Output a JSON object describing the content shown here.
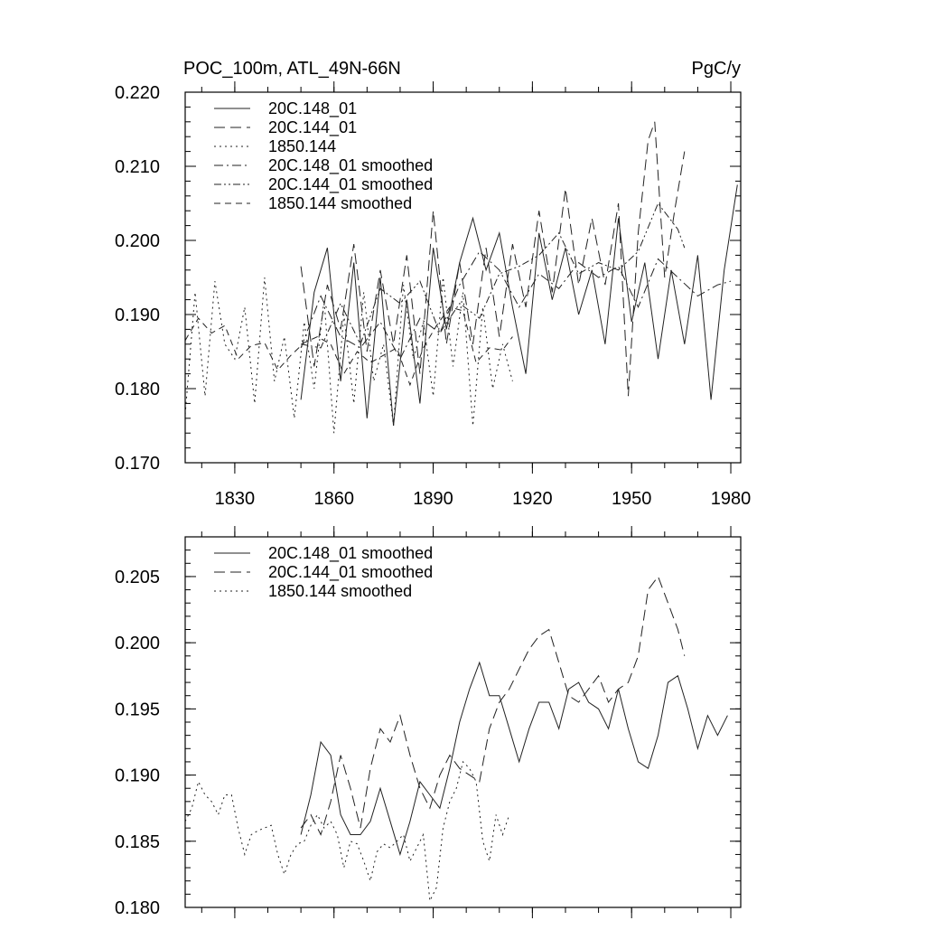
{
  "chart_data": [
    {
      "type": "line",
      "title_left": "POC_100m, ATL_49N-66N",
      "title_right": "PgC/y",
      "xlabel": "",
      "ylabel": "",
      "xlim": [
        1815,
        1983
      ],
      "ylim": [
        0.17,
        0.22
      ],
      "xticks": [
        1830,
        1860,
        1890,
        1920,
        1950,
        1980
      ],
      "xtick_labels": [
        "1830",
        "1860",
        "1890",
        "1920",
        "1950",
        "1980"
      ],
      "yticks": [
        0.17,
        0.18,
        0.19,
        0.2,
        0.21,
        0.22
      ],
      "ytick_labels": [
        "0.170",
        "0.180",
        "0.190",
        "0.200",
        "0.210",
        "0.220"
      ],
      "legend_position": "top-left",
      "series": [
        {
          "name": "20C.148_01",
          "style": "solid",
          "x": [
            1850,
            1854,
            1858,
            1862,
            1866,
            1870,
            1874,
            1878,
            1882,
            1886,
            1890,
            1894,
            1898,
            1902,
            1906,
            1910,
            1914,
            1918,
            1922,
            1926,
            1930,
            1934,
            1938,
            1942,
            1946,
            1950,
            1954,
            1958,
            1962,
            1966,
            1970,
            1974,
            1978,
            1982
          ],
          "y": [
            0.1785,
            0.193,
            0.199,
            0.181,
            0.197,
            0.176,
            0.195,
            0.175,
            0.192,
            0.178,
            0.199,
            0.188,
            0.197,
            0.203,
            0.196,
            0.201,
            0.191,
            0.182,
            0.201,
            0.192,
            0.199,
            0.19,
            0.196,
            0.186,
            0.203,
            0.189,
            0.197,
            0.184,
            0.196,
            0.186,
            0.198,
            0.1785,
            0.196,
            0.2075
          ]
        },
        {
          "name": "20C.144_01",
          "style": "dashed",
          "x": [
            1850,
            1854,
            1858,
            1862,
            1866,
            1870,
            1874,
            1878,
            1882,
            1886,
            1890,
            1894,
            1898,
            1902,
            1906,
            1910,
            1914,
            1918,
            1922,
            1926,
            1930,
            1934,
            1938,
            1942,
            1946,
            1949,
            1952,
            1955,
            1957,
            1960,
            1963,
            1966
          ],
          "y": [
            0.1965,
            0.183,
            0.194,
            0.188,
            0.1995,
            0.185,
            0.196,
            0.186,
            0.198,
            0.182,
            0.204,
            0.186,
            0.197,
            0.186,
            0.199,
            0.187,
            0.1995,
            0.191,
            0.204,
            0.193,
            0.207,
            0.194,
            0.203,
            0.194,
            0.205,
            0.179,
            0.201,
            0.2135,
            0.216,
            0.195,
            0.204,
            0.212
          ]
        },
        {
          "name": "1850.144",
          "style": "dotted",
          "x": [
            1815,
            1818,
            1821,
            1824,
            1827,
            1830,
            1833,
            1836,
            1839,
            1842,
            1845,
            1848,
            1851,
            1854,
            1857,
            1860,
            1863,
            1866,
            1869,
            1872,
            1875,
            1878,
            1881,
            1884,
            1887,
            1890,
            1893,
            1896,
            1899,
            1902,
            1905,
            1908,
            1911,
            1914
          ],
          "y": [
            0.1765,
            0.193,
            0.179,
            0.1945,
            0.186,
            0.184,
            0.191,
            0.178,
            0.195,
            0.181,
            0.187,
            0.176,
            0.189,
            0.18,
            0.192,
            0.174,
            0.19,
            0.178,
            0.193,
            0.181,
            0.186,
            0.175,
            0.194,
            0.184,
            0.189,
            0.179,
            0.195,
            0.183,
            0.193,
            0.175,
            0.191,
            0.18,
            0.186,
            0.181
          ]
        },
        {
          "name": "20C.148_01 smoothed",
          "style": "dashdot",
          "x": [
            1850,
            1856,
            1862,
            1868,
            1874,
            1880,
            1886,
            1892,
            1898,
            1904,
            1910,
            1916,
            1922,
            1928,
            1934,
            1940,
            1946,
            1952,
            1958,
            1964,
            1970,
            1976,
            1980
          ],
          "y": [
            0.1855,
            0.1925,
            0.187,
            0.1855,
            0.189,
            0.184,
            0.1895,
            0.1875,
            0.194,
            0.1985,
            0.196,
            0.191,
            0.1955,
            0.1935,
            0.197,
            0.195,
            0.1965,
            0.191,
            0.1975,
            0.195,
            0.1925,
            0.194,
            0.1945
          ]
        },
        {
          "name": "20C.144_01 smoothed",
          "style": "dashdotdot",
          "x": [
            1850,
            1856,
            1862,
            1868,
            1874,
            1880,
            1886,
            1892,
            1898,
            1904,
            1910,
            1916,
            1922,
            1928,
            1934,
            1940,
            1946,
            1952,
            1958,
            1964,
            1966
          ],
          "y": [
            0.186,
            0.1855,
            0.1915,
            0.186,
            0.1935,
            0.1915,
            0.1945,
            0.1875,
            0.1915,
            0.1895,
            0.1955,
            0.1965,
            0.198,
            0.201,
            0.1955,
            0.197,
            0.196,
            0.1985,
            0.205,
            0.2015,
            0.199
          ]
        },
        {
          "name": "1850.144 smoothed",
          "style": "longdash",
          "x": [
            1815,
            1819,
            1823,
            1827,
            1831,
            1835,
            1839,
            1843,
            1847,
            1851,
            1855,
            1859,
            1863,
            1867,
            1871,
            1875,
            1879,
            1883,
            1887,
            1891,
            1895,
            1899,
            1903,
            1907,
            1911,
            1914
          ],
          "y": [
            0.1865,
            0.1895,
            0.1875,
            0.1885,
            0.184,
            0.1858,
            0.1862,
            0.1825,
            0.1845,
            0.1862,
            0.187,
            0.186,
            0.182,
            0.185,
            0.1835,
            0.1845,
            0.1855,
            0.1805,
            0.1855,
            0.1885,
            0.191,
            0.1905,
            0.1835,
            0.1855,
            0.1852,
            0.187
          ]
        }
      ],
      "legend": [
        {
          "label": "20C.148_01",
          "style": "solid"
        },
        {
          "label": "20C.144_01",
          "style": "dashed"
        },
        {
          "label": "1850.144",
          "style": "dotted"
        },
        {
          "label": "20C.148_01 smoothed",
          "style": "dashdot"
        },
        {
          "label": "20C.144_01 smoothed",
          "style": "dashdotdot"
        },
        {
          "label": "1850.144 smoothed",
          "style": "longdash"
        }
      ]
    },
    {
      "type": "line",
      "title_left": "",
      "title_right": "",
      "xlabel": "",
      "ylabel": "",
      "xlim": [
        1815,
        1983
      ],
      "ylim": [
        0.18,
        0.208
      ],
      "xticks": [
        1830,
        1860,
        1890,
        1920,
        1950,
        1980
      ],
      "yticks": [
        0.18,
        0.185,
        0.19,
        0.195,
        0.2,
        0.205
      ],
      "ytick_labels": [
        "0.180",
        "0.185",
        "0.190",
        "0.195",
        "0.200",
        "0.205"
      ],
      "legend_position": "top-left",
      "series": [
        {
          "name": "20C.148_01 smoothed",
          "style": "solid",
          "x": [
            1850,
            1853,
            1856,
            1859,
            1862,
            1865,
            1868,
            1871,
            1874,
            1877,
            1880,
            1883,
            1886,
            1889,
            1892,
            1895,
            1898,
            1901,
            1904,
            1907,
            1910,
            1913,
            1916,
            1919,
            1922,
            1925,
            1928,
            1931,
            1934,
            1937,
            1940,
            1943,
            1946,
            1949,
            1952,
            1955,
            1958,
            1961,
            1964,
            1967,
            1970,
            1973,
            1976,
            1979
          ],
          "y": [
            0.1855,
            0.1885,
            0.1925,
            0.1915,
            0.187,
            0.1855,
            0.1855,
            0.1865,
            0.189,
            0.1865,
            0.184,
            0.1865,
            0.1895,
            0.1885,
            0.1875,
            0.1905,
            0.194,
            0.1965,
            0.1985,
            0.196,
            0.196,
            0.1935,
            0.191,
            0.1935,
            0.1955,
            0.1955,
            0.1935,
            0.1965,
            0.197,
            0.1955,
            0.195,
            0.1935,
            0.1965,
            0.1935,
            0.191,
            0.1905,
            0.193,
            0.197,
            0.1975,
            0.195,
            0.192,
            0.1945,
            0.193,
            0.1945
          ]
        },
        {
          "name": "20C.144_01 smoothed",
          "style": "dashed",
          "x": [
            1850,
            1853,
            1856,
            1859,
            1862,
            1865,
            1868,
            1871,
            1874,
            1877,
            1880,
            1883,
            1886,
            1889,
            1892,
            1895,
            1898,
            1901,
            1904,
            1907,
            1910,
            1913,
            1916,
            1919,
            1922,
            1925,
            1928,
            1931,
            1934,
            1937,
            1940,
            1943,
            1946,
            1949,
            1952,
            1955,
            1958,
            1961,
            1964,
            1966
          ],
          "y": [
            0.186,
            0.187,
            0.1855,
            0.188,
            0.1915,
            0.189,
            0.186,
            0.1905,
            0.1935,
            0.1925,
            0.1945,
            0.1915,
            0.189,
            0.1875,
            0.19,
            0.1915,
            0.1905,
            0.19,
            0.1895,
            0.1935,
            0.1955,
            0.1965,
            0.198,
            0.1995,
            0.2005,
            0.201,
            0.1985,
            0.196,
            0.1955,
            0.1965,
            0.1975,
            0.1955,
            0.1965,
            0.197,
            0.199,
            0.204,
            0.205,
            0.203,
            0.201,
            0.199
          ]
        },
        {
          "name": "1850.144 smoothed",
          "style": "dotted",
          "x": [
            1815,
            1817,
            1819,
            1821,
            1823,
            1825,
            1827,
            1829,
            1831,
            1833,
            1835,
            1837,
            1839,
            1841,
            1843,
            1845,
            1847,
            1849,
            1851,
            1853,
            1855,
            1857,
            1859,
            1861,
            1863,
            1865,
            1867,
            1869,
            1871,
            1873,
            1875,
            1877,
            1879,
            1881,
            1883,
            1885,
            1887,
            1889,
            1891,
            1893,
            1895,
            1897,
            1899,
            1901,
            1903,
            1905,
            1907,
            1909,
            1911,
            1913
          ],
          "y": [
            0.1865,
            0.1875,
            0.1895,
            0.1885,
            0.188,
            0.187,
            0.1885,
            0.1885,
            0.186,
            0.184,
            0.1855,
            0.1858,
            0.186,
            0.1862,
            0.184,
            0.1825,
            0.184,
            0.1848,
            0.185,
            0.1862,
            0.187,
            0.186,
            0.1865,
            0.1855,
            0.183,
            0.185,
            0.1848,
            0.1835,
            0.182,
            0.1842,
            0.1848,
            0.1845,
            0.185,
            0.1855,
            0.1835,
            0.1845,
            0.1855,
            0.1805,
            0.1815,
            0.186,
            0.188,
            0.189,
            0.191,
            0.1905,
            0.1895,
            0.185,
            0.1835,
            0.187,
            0.1855,
            0.187
          ]
        }
      ],
      "legend": [
        {
          "label": "20C.148_01 smoothed",
          "style": "solid"
        },
        {
          "label": "20C.144_01 smoothed",
          "style": "dashed"
        },
        {
          "label": "1850.144 smoothed",
          "style": "dotted"
        }
      ]
    }
  ]
}
